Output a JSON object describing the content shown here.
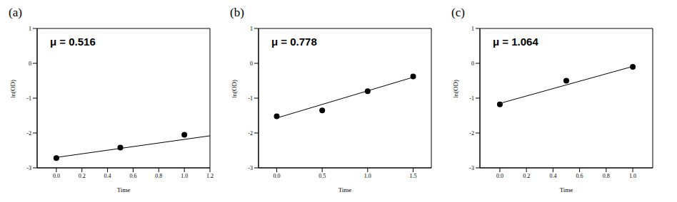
{
  "chart_data": [
    {
      "type": "scatter",
      "title": "(a)",
      "annotation": "μ = 0.516",
      "x_label": "Time",
      "y_label": "ln(OD)",
      "x": [
        0,
        0.5,
        1.0
      ],
      "values": [
        -2.72,
        -2.42,
        -2.05
      ],
      "fit": {
        "x": [
          0,
          1.2
        ],
        "values": [
          -2.7,
          -2.08
        ]
      },
      "xlim": [
        -0.15,
        1.2
      ],
      "xticks": [
        {
          "value": 0,
          "label": "0.0"
        },
        {
          "value": 0.2,
          "label": "0.2"
        },
        {
          "value": 0.4,
          "label": "0.4"
        },
        {
          "value": 0.6,
          "label": "0.6"
        },
        {
          "value": 0.8,
          "label": "0.8"
        },
        {
          "value": 1.0,
          "label": "1.0"
        },
        {
          "value": 1.2,
          "label": "1.2"
        }
      ],
      "ylim": [
        -3,
        1
      ],
      "yticks": [
        -3,
        -2,
        -1,
        0,
        1
      ]
    },
    {
      "type": "scatter",
      "title": "(b)",
      "annotation": "μ = 0.778",
      "x_label": "Time",
      "y_label": "ln(OD)",
      "x": [
        0,
        0.5,
        1.0,
        1.5
      ],
      "values": [
        -1.52,
        -1.35,
        -0.8,
        -0.38
      ],
      "fit": {
        "x": [
          0,
          1.5
        ],
        "values": [
          -1.57,
          -0.4
        ]
      },
      "xlim": [
        -0.2,
        1.7
      ],
      "xticks": [
        {
          "value": 0,
          "label": "0.0"
        },
        {
          "value": 0.5,
          "label": "0.5"
        },
        {
          "value": 1.0,
          "label": "1.0"
        },
        {
          "value": 1.5,
          "label": "1.5"
        }
      ],
      "ylim": [
        -3,
        1
      ],
      "yticks": [
        -3,
        -2,
        -1,
        0,
        1
      ]
    },
    {
      "type": "scatter",
      "title": "(c)",
      "annotation": "μ = 1.064",
      "x_label": "Time",
      "y_label": "ln(OD)",
      "x": [
        0,
        0.5,
        1.0
      ],
      "values": [
        -1.18,
        -0.5,
        -0.1
      ],
      "fit": {
        "x": [
          0,
          1.0
        ],
        "values": [
          -1.15,
          -0.09
        ]
      },
      "xlim": [
        -0.15,
        1.15
      ],
      "xticks": [
        {
          "value": 0,
          "label": "0.0"
        },
        {
          "value": 0.2,
          "label": "0.2"
        },
        {
          "value": 0.4,
          "label": "0.4"
        },
        {
          "value": 0.6,
          "label": "0.6"
        },
        {
          "value": 0.8,
          "label": "0.8"
        },
        {
          "value": 1.0,
          "label": "1.0"
        }
      ],
      "ylim": [
        -3,
        1
      ],
      "yticks": [
        -3,
        -2,
        -1,
        0,
        1
      ]
    }
  ]
}
